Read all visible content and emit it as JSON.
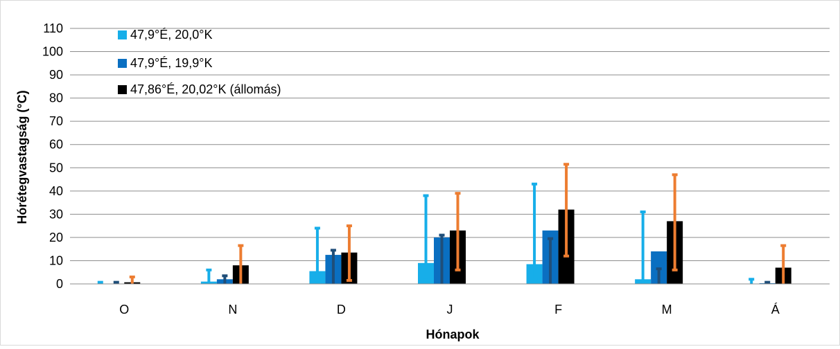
{
  "chart_data": {
    "type": "bar",
    "title": "",
    "xlabel": "Hónapok",
    "ylabel": "Hórétegvastagság (°C)",
    "ylim": [
      0,
      110
    ],
    "yticks": [
      "0",
      "10",
      "20",
      "30",
      "40",
      "50",
      "60",
      "70",
      "80",
      "90",
      "100",
      "110"
    ],
    "categories": [
      "O",
      "N",
      "D",
      "J",
      "F",
      "M",
      "Á"
    ],
    "grid": true,
    "legend_position": "top-left",
    "series": [
      {
        "name": "47,9°É, 20,0°K",
        "color": "#17AEE9",
        "values": [
          0,
          1,
          5.5,
          9,
          8.5,
          2,
          0
        ],
        "err_low": [
          0,
          0,
          1.5,
          1.5,
          2,
          0,
          0
        ],
        "err_high": [
          0.7,
          6,
          24,
          38,
          43,
          31,
          2
        ],
        "err_color": "#17AEE9"
      },
      {
        "name": "47,9°É, 19,9°K",
        "color": "#0A6FC1",
        "values": [
          0,
          2,
          12.5,
          20,
          23,
          14,
          0.3
        ],
        "err_low": [
          0,
          0,
          0,
          0,
          0,
          0,
          0
        ],
        "err_high": [
          0.7,
          3.5,
          14.5,
          21,
          19.5,
          6.5,
          0.7
        ],
        "err_color": "#1F4E79"
      },
      {
        "name": "47,86°É, 20,02°K (állomás)",
        "color": "#000000",
        "values": [
          0.7,
          8,
          13.5,
          23,
          32,
          27,
          7
        ],
        "err_low": [
          0,
          0,
          1.5,
          6,
          12,
          6,
          0
        ],
        "err_high": [
          3,
          16.5,
          25,
          39,
          51.5,
          47,
          16.5
        ],
        "err_color": "#ED7D31"
      }
    ]
  }
}
